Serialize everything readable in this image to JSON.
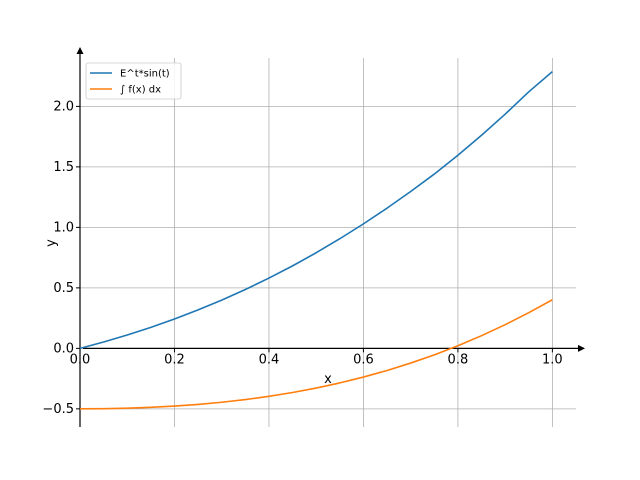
{
  "chart_data": {
    "type": "line",
    "xlabel": "x",
    "ylabel": "y",
    "xlim": [
      0.0,
      1.05
    ],
    "ylim": [
      -0.65,
      2.4
    ],
    "xticks": [
      0.0,
      0.2,
      0.4,
      0.6,
      0.8,
      1.0
    ],
    "xtick_labels": [
      "0.0",
      "0.2",
      "0.4",
      "0.6",
      "0.8",
      "1.0"
    ],
    "yticks": [
      -0.5,
      0.0,
      0.5,
      1.0,
      1.5,
      2.0
    ],
    "ytick_labels": [
      "−0.5",
      "0.0",
      "0.5",
      "1.0",
      "1.5",
      "2.0"
    ],
    "grid": true,
    "legend_position": "top-left",
    "series": [
      {
        "name": "E^t*sin(t)",
        "color": "#1f77b4",
        "x": [
          0.0,
          0.05,
          0.1,
          0.15,
          0.2,
          0.25,
          0.3,
          0.35,
          0.4,
          0.45,
          0.5,
          0.55,
          0.6,
          0.65,
          0.7,
          0.75,
          0.8,
          0.85,
          0.9,
          0.95,
          1.0
        ],
        "y": [
          0.0,
          0.0525,
          0.1103,
          0.1735,
          0.2427,
          0.3177,
          0.3989,
          0.4864,
          0.5809,
          0.6818,
          0.7904,
          0.9061,
          1.0289,
          1.1589,
          1.2963,
          1.4406,
          1.5965,
          1.7612,
          1.9357,
          2.1205,
          2.2874
        ]
      },
      {
        "name": "∫ f(x) dx",
        "color": "#ff7f0e",
        "x": [
          0.0,
          0.05,
          0.1,
          0.15,
          0.2,
          0.25,
          0.3,
          0.35,
          0.4,
          0.45,
          0.5,
          0.55,
          0.6,
          0.65,
          0.7,
          0.75,
          0.8,
          0.85,
          0.9,
          0.95,
          1.0
        ],
        "y": [
          -0.5,
          -0.4987,
          -0.4946,
          -0.4876,
          -0.4772,
          -0.4633,
          -0.4454,
          -0.4233,
          -0.3966,
          -0.365,
          -0.3281,
          -0.2856,
          -0.2373,
          -0.1827,
          -0.1215,
          -0.0535,
          0.0219,
          0.1048,
          0.1956,
          0.2946,
          0.4019
        ]
      }
    ]
  }
}
